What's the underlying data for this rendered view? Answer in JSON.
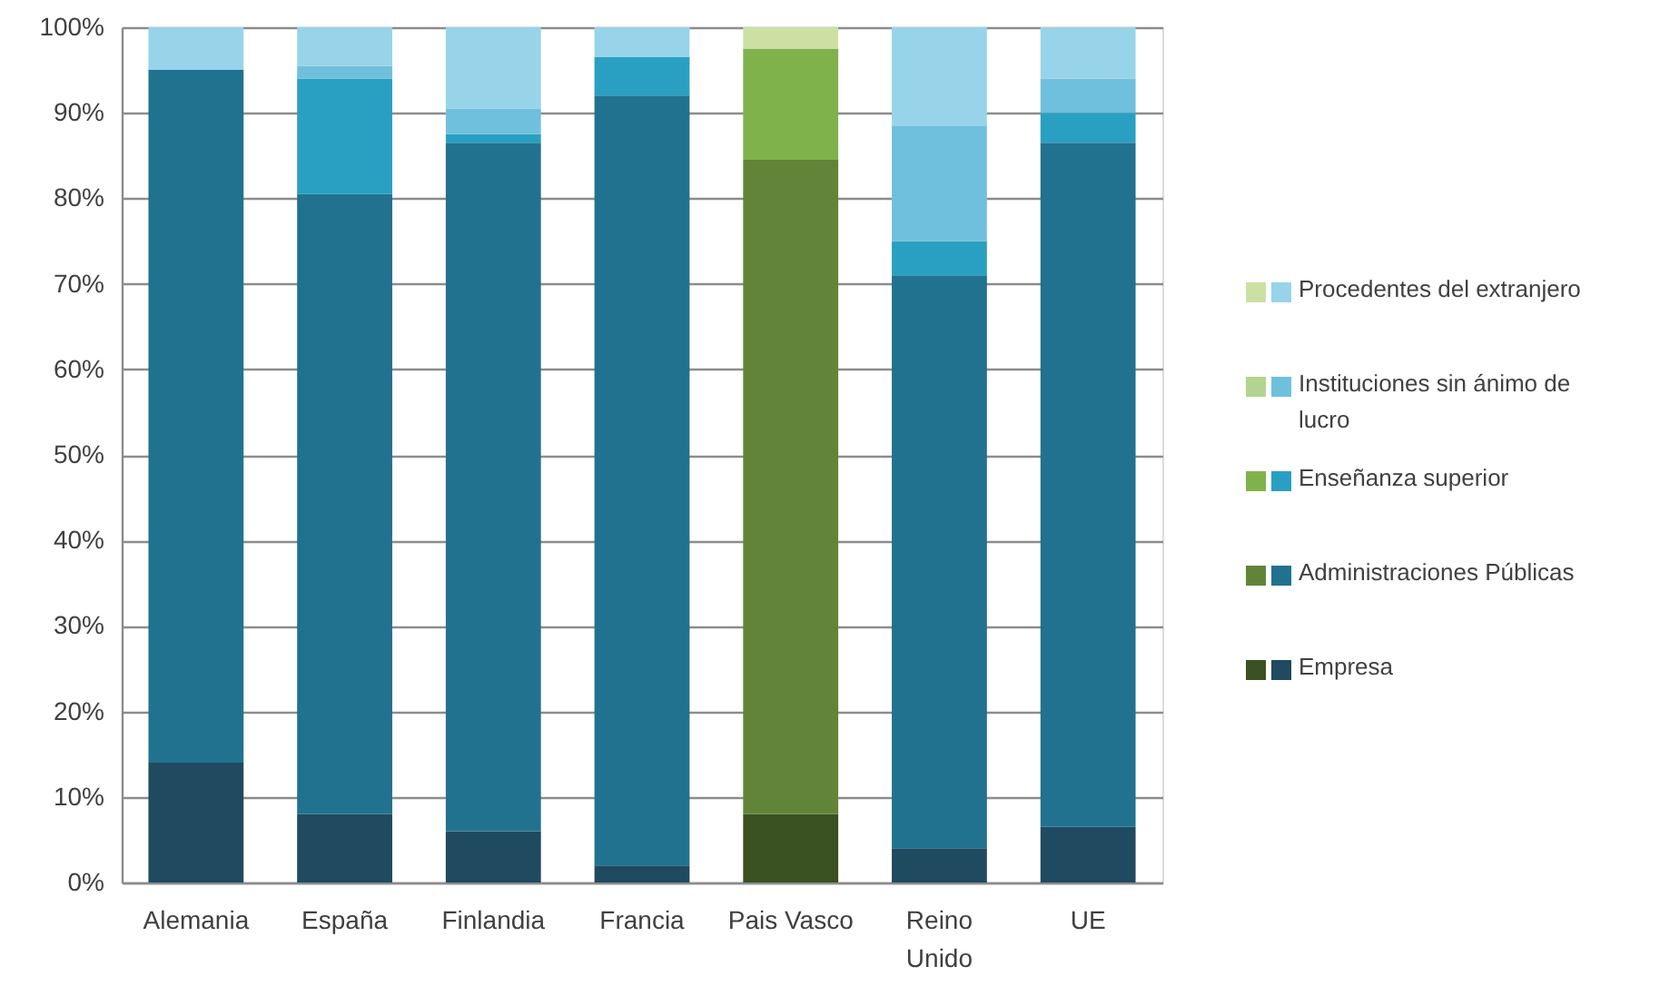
{
  "chart_data": {
    "type": "bar",
    "stacked": true,
    "categories": [
      "Alemania",
      "España",
      "Finlandia",
      "Francia",
      "Pais Vasco",
      "Reino Unido",
      "UE"
    ],
    "series": [
      {
        "name": "Empresa",
        "colors": [
          "#1f4a5f",
          "#1f4a5f",
          "#1f4a5f",
          "#1f4a5f",
          "#3a5121",
          "#1f4a5f",
          "#1f4a5f"
        ],
        "values": [
          14,
          8,
          6,
          2,
          8,
          4,
          6.5
        ]
      },
      {
        "name": "Administraciones Públicas",
        "colors": [
          "#20728f",
          "#20728f",
          "#20728f",
          "#20728f",
          "#628438",
          "#20728f",
          "#20728f"
        ],
        "values": [
          81,
          72.5,
          80.5,
          90,
          76.5,
          67,
          80
        ]
      },
      {
        "name": "Enseñanza superior",
        "colors": [
          "#29a0c1",
          "#29a0c1",
          "#29a0c1",
          "#29a0c1",
          "#80b24c",
          "#29a0c1",
          "#29a0c1"
        ],
        "values": [
          null,
          13.5,
          1,
          4.5,
          13,
          4,
          3.5
        ]
      },
      {
        "name": "Instituciones sin ánimo de lucro",
        "colors": [
          "#6fc0dd",
          "#6fc0dd",
          "#6fc0dd",
          "#6fc0dd",
          "#b3d48f",
          "#6fc0dd",
          "#6fc0dd"
        ],
        "values": [
          null,
          1.5,
          3,
          null,
          null,
          13.5,
          4
        ]
      },
      {
        "name": "Procedentes del extranjero",
        "colors": [
          "#97d4ea",
          "#97d4ea",
          "#97d4ea",
          "#97d4ea",
          "#cde0a4",
          "#97d4ea",
          "#97d4ea"
        ],
        "values": [
          5,
          4.5,
          9.5,
          3.5,
          2.5,
          11.5,
          6
        ]
      }
    ],
    "ylim": [
      0,
      100
    ],
    "yticks": [
      {
        "value": 0,
        "label": "0%"
      },
      {
        "value": 10,
        "label": "10%"
      },
      {
        "value": 20,
        "label": "20%"
      },
      {
        "value": 30,
        "label": "30%"
      },
      {
        "value": 40,
        "label": "40%"
      },
      {
        "value": 50,
        "label": "50%"
      },
      {
        "value": 60,
        "label": "60%"
      },
      {
        "value": 70,
        "label": "70%"
      },
      {
        "value": 80,
        "label": "80%"
      },
      {
        "value": 90,
        "label": "90%"
      },
      {
        "value": 100,
        "label": "100%"
      }
    ],
    "grid": "y",
    "legend": "right"
  }
}
